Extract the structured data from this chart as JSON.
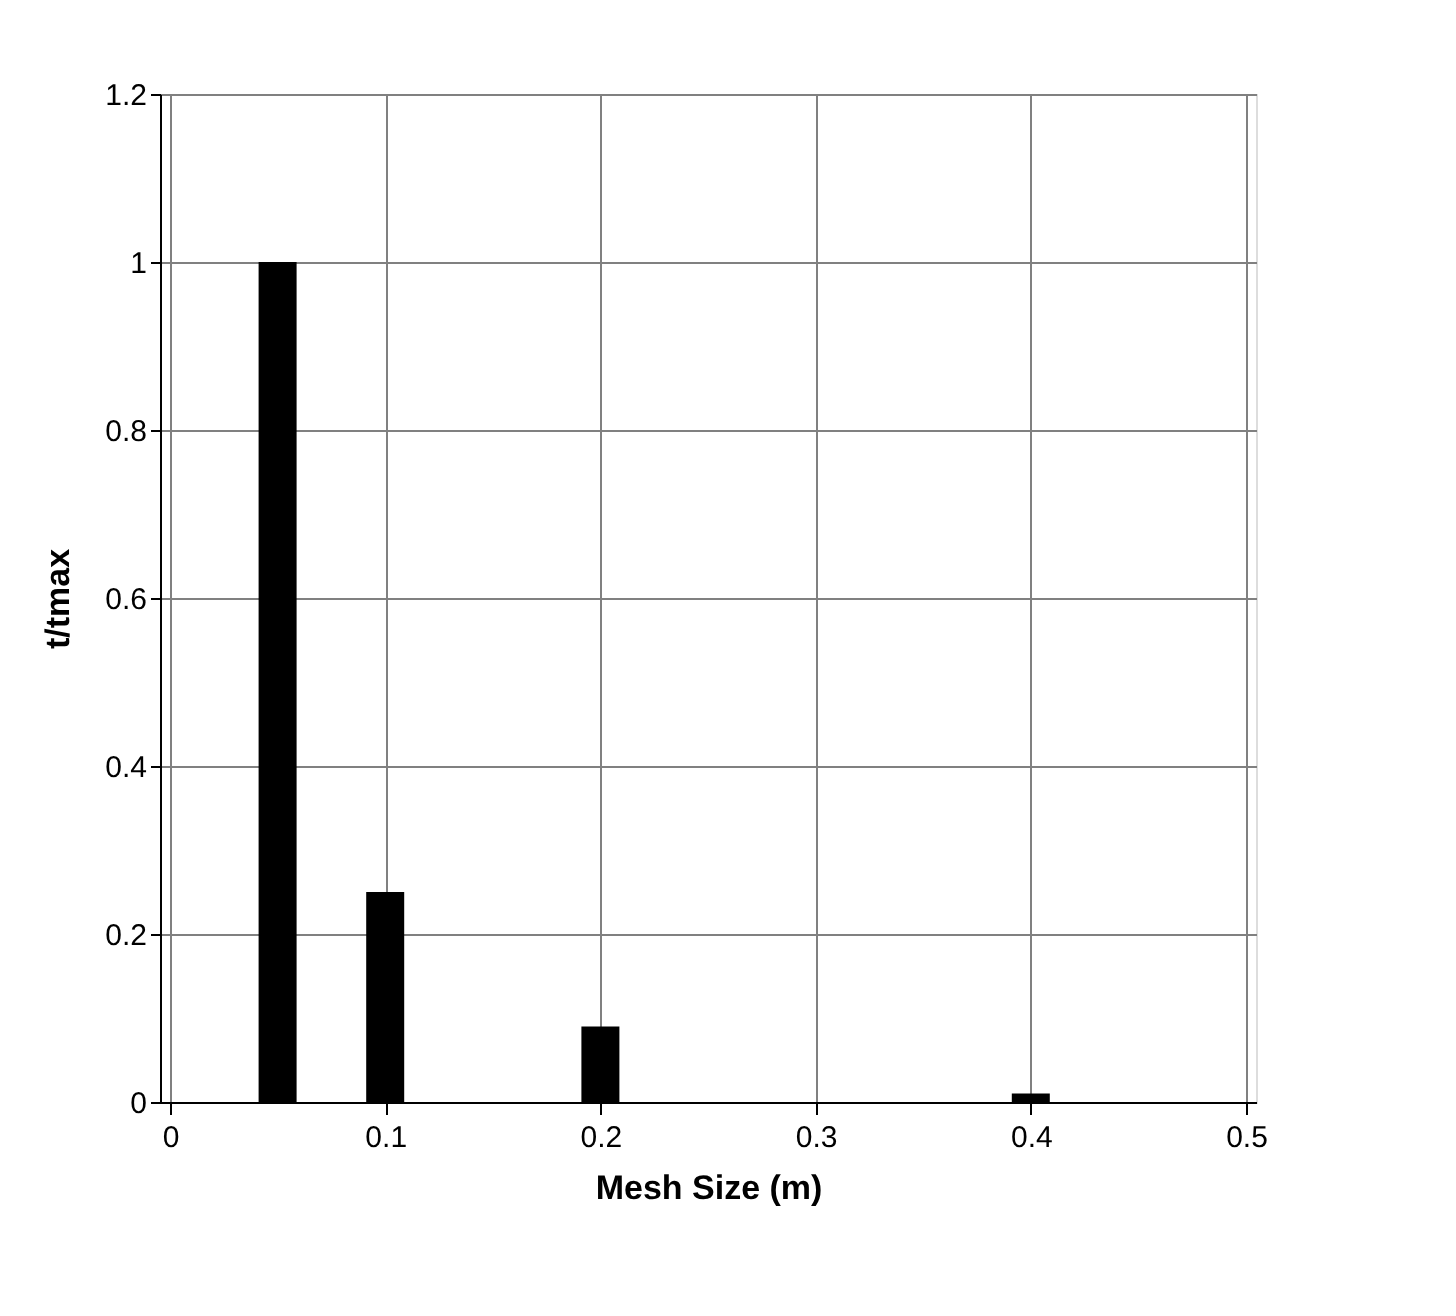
{
  "chart_data": {
    "type": "bar",
    "xlabel": "Mesh Size (m)",
    "ylabel": "t/tmax",
    "x": [
      0.05,
      0.1,
      0.2,
      0.4
    ],
    "values": [
      1,
      0.25,
      0.09,
      0.01
    ],
    "color": "#000000",
    "xlim": [
      0,
      0.5
    ],
    "xticks": [
      0,
      0.1,
      0.2,
      0.3,
      0.4,
      0.5
    ],
    "ylim": [
      0,
      1.2
    ],
    "yticks": [
      0,
      0.2,
      0.4,
      0.6,
      0.8,
      1,
      1.2
    ],
    "grid": true
  }
}
